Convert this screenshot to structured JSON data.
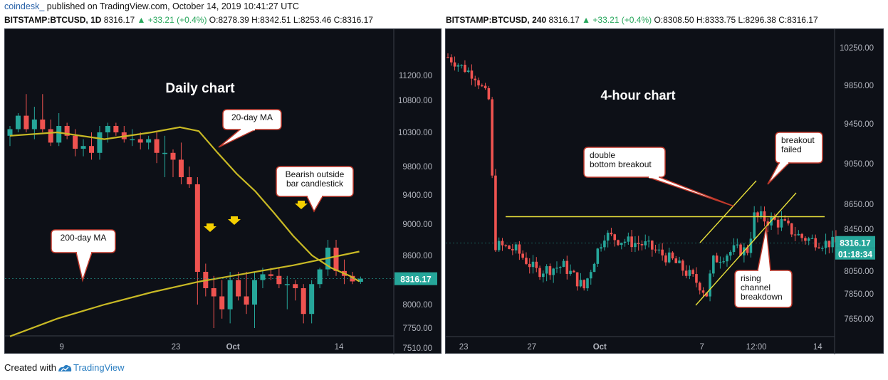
{
  "header": {
    "brand": "coindesk_",
    "published": " published on TradingView.com, October 14, 2019 10:41:27 UTC"
  },
  "left_info": {
    "symbol": "BITSTAMP:BTCUSD, 1D",
    "last": " 8316.17",
    "change": " ▲ +33.21 (+0.4%)",
    "ohlc": " O:8278.39 H:8342.51 L:8253.46 C:8316.17"
  },
  "right_info": {
    "symbol": "BITSTAMP:BTCUSD, 240",
    "last": " 8316.17",
    "change": " ▲ +33.21 (+0.4%)",
    "ohlc": " O:8308.50 H:8333.75 L:8296.38 C:8316.17"
  },
  "footer": {
    "text": "Created with",
    "brand": "TradingView"
  },
  "colors": {
    "up": "#26a69a",
    "down": "#ef5350",
    "ma": "#c8b925",
    "trendline": "#e8e03a",
    "background": "#0d1017",
    "axis_text": "#b2b5be"
  },
  "chart_data": [
    {
      "type": "candlestick",
      "title": "Daily chart",
      "interval": "1D",
      "y_ticks": [
        7510,
        7750,
        8000,
        8600,
        9000,
        9400,
        9800,
        10300,
        10800,
        11200
      ],
      "y_tick_labels": [
        "7510.00",
        "7750.00",
        "8000.00",
        "8600.00",
        "9000.00",
        "9400.00",
        "9800.00",
        "10300.00",
        "10800.00",
        "11200.00"
      ],
      "x_ticks": [
        {
          "i": 6,
          "label": "9"
        },
        {
          "i": 20,
          "label": "23"
        },
        {
          "i": 27,
          "label": "Oct"
        },
        {
          "i": 40,
          "label": "14"
        }
      ],
      "last_price_label": "8316.17",
      "candles": [
        [
          10250,
          10400,
          10100,
          10350
        ],
        [
          10350,
          10600,
          10300,
          10560
        ],
        [
          10560,
          10900,
          10300,
          10350
        ],
        [
          10350,
          10700,
          10200,
          10500
        ],
        [
          10500,
          10900,
          10300,
          10350
        ],
        [
          10350,
          10500,
          10100,
          10150
        ],
        [
          10150,
          10600,
          10100,
          10400
        ],
        [
          10400,
          10450,
          10200,
          10250
        ],
        [
          10250,
          10350,
          9950,
          10060
        ],
        [
          10060,
          10200,
          9950,
          10100
        ],
        [
          10100,
          10300,
          9900,
          10000
        ],
        [
          10000,
          10400,
          9900,
          10300
        ],
        [
          10300,
          10450,
          10150,
          10400
        ],
        [
          10400,
          10450,
          10250,
          10300
        ],
        [
          10300,
          10400,
          10150,
          10200
        ],
        [
          10200,
          10350,
          10100,
          10200
        ],
        [
          10200,
          10300,
          10050,
          10150
        ],
        [
          10150,
          10250,
          10050,
          10200
        ],
        [
          10200,
          10300,
          9850,
          10000
        ],
        [
          10000,
          10250,
          9650,
          10000
        ],
        [
          10000,
          10050,
          9650,
          9900
        ],
        [
          9900,
          10150,
          9550,
          9650
        ],
        [
          9650,
          9800,
          9500,
          9550
        ],
        [
          9550,
          9650,
          8000,
          8400
        ],
        [
          8400,
          8500,
          8100,
          8200
        ],
        [
          8200,
          8350,
          7750,
          8100
        ],
        [
          8100,
          8300,
          7850,
          7950
        ],
        [
          7950,
          8400,
          7800,
          8300
        ],
        [
          8300,
          8400,
          8050,
          8100
        ],
        [
          8100,
          8400,
          7900,
          8000
        ],
        [
          8000,
          8400,
          7750,
          8300
        ],
        [
          8300,
          8450,
          8200,
          8370
        ],
        [
          8370,
          8450,
          8300,
          8350
        ],
        [
          8350,
          8450,
          8200,
          8250
        ],
        [
          8250,
          8350,
          7950,
          8250
        ],
        [
          8250,
          8300,
          8050,
          8200
        ],
        [
          8200,
          8250,
          7800,
          7900
        ],
        [
          7900,
          8300,
          7800,
          8250
        ],
        [
          8250,
          8450,
          8200,
          8430
        ],
        [
          8430,
          8800,
          8350,
          8700
        ],
        [
          8700,
          8800,
          8350,
          8410
        ],
        [
          8410,
          8550,
          8250,
          8350
        ],
        [
          8350,
          8400,
          8250,
          8283
        ],
        [
          8278,
          8342,
          8253,
          8316
        ]
      ],
      "ma20": [
        [
          0,
          10250
        ],
        [
          5,
          10300
        ],
        [
          10,
          10200
        ],
        [
          15,
          10300
        ],
        [
          18,
          10380
        ],
        [
          20,
          10320
        ],
        [
          22,
          10000
        ],
        [
          24,
          9700
        ],
        [
          26,
          9450
        ],
        [
          28,
          9150
        ],
        [
          30,
          8850
        ],
        [
          32,
          8600
        ],
        [
          34,
          8450
        ],
        [
          36,
          8350
        ],
        [
          37,
          8283
        ]
      ],
      "ma200": [
        [
          0,
          7650
        ],
        [
          5,
          7850
        ],
        [
          10,
          8000
        ],
        [
          15,
          8150
        ],
        [
          20,
          8280
        ],
        [
          25,
          8380
        ],
        [
          30,
          8480
        ],
        [
          35,
          8600
        ],
        [
          37,
          8650
        ]
      ],
      "annotations": [
        "Daily chart",
        "20-day MA",
        "200-day MA",
        "Bearish outside bar candlestick"
      ]
    },
    {
      "type": "candlestick",
      "title": "4-hour chart",
      "interval": "240",
      "y_ticks": [
        7650,
        7850,
        8050,
        8450,
        8650,
        9050,
        9450,
        9850,
        10250
      ],
      "y_tick_labels": [
        "7650.00",
        "7850.00",
        "8050.00",
        "8450.00",
        "8650.00",
        "9050.00",
        "9450.00",
        "9850.00",
        "10250.00"
      ],
      "x_ticks": [
        {
          "i": 4,
          "label": "23"
        },
        {
          "i": 24,
          "label": "27"
        },
        {
          "i": 44,
          "label": "Oct"
        },
        {
          "i": 74,
          "label": "7"
        },
        {
          "i": 90,
          "label": "12:00"
        },
        {
          "i": 108,
          "label": "14"
        }
      ],
      "last_price_label": "8316.17",
      "countdown_label": "01:18:34",
      "horizontal_line": 8550,
      "annotations": [
        "4-hour chart",
        "double bottom breakout",
        "breakout failed",
        "rising channel breakdown"
      ]
    }
  ]
}
